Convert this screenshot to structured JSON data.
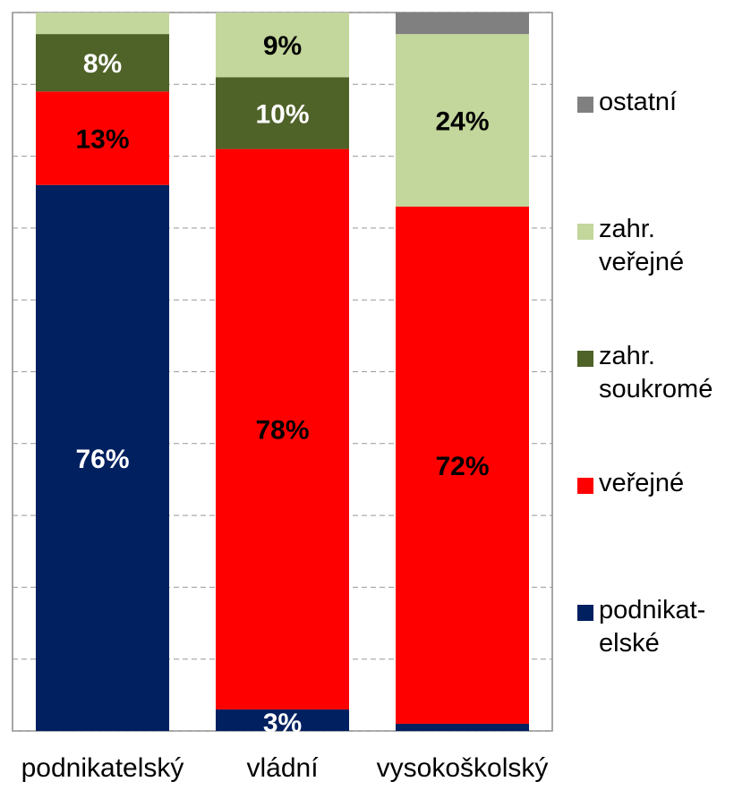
{
  "chart_data": {
    "type": "stacked_bar",
    "categories": [
      "podnikatelský",
      "vládní",
      "vysokoškolský"
    ],
    "series": [
      {
        "name": "podnikat-elské",
        "color": "#002060",
        "label_color": "#ffffff",
        "values": [
          76,
          3,
          1
        ],
        "value_labels": [
          "76%",
          "3%",
          null
        ]
      },
      {
        "name": "veřejné",
        "color": "#ff0000",
        "label_color": "#000000",
        "values": [
          13,
          78,
          72
        ],
        "value_labels": [
          "13%",
          "78%",
          "72%"
        ]
      },
      {
        "name": "zahr. soukromé",
        "color": "#4f6228",
        "label_color": "#ffffff",
        "values": [
          8,
          10,
          0
        ],
        "value_labels": [
          "8%",
          "10%",
          null
        ]
      },
      {
        "name": "zahr. veřejné",
        "color": "#c3d69b",
        "label_color": "#000000",
        "values": [
          3,
          9,
          24
        ],
        "value_labels": [
          null,
          "9%",
          "24%"
        ]
      },
      {
        "name": "ostatní",
        "color": "#808080",
        "label_color": "#000000",
        "values": [
          0,
          0,
          3
        ],
        "value_labels": [
          null,
          null,
          null
        ]
      }
    ],
    "ylim": [
      0,
      100
    ],
    "yticks": [
      0,
      10,
      20,
      30,
      40,
      50,
      60,
      70,
      80,
      90,
      100
    ],
    "grid": true,
    "legend": "right"
  }
}
